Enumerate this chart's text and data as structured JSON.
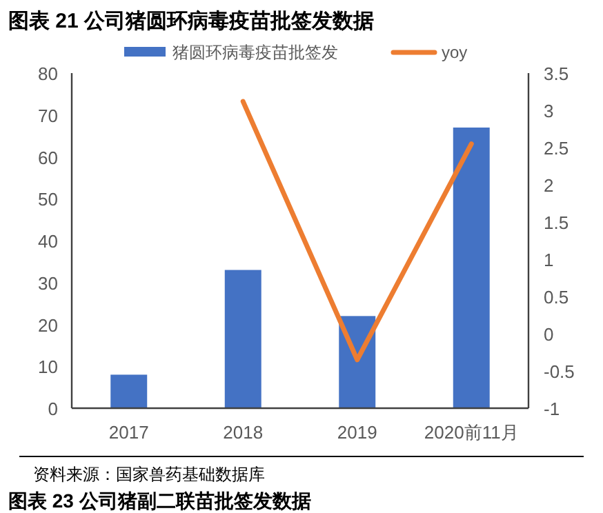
{
  "chart_data": {
    "type": "bar",
    "title": "图表 21 公司猪圆环病毒疫苗批签发数据",
    "categories": [
      "2017",
      "2018",
      "2019",
      "2020前11月"
    ],
    "series": [
      {
        "name": "猪圆环病毒疫苗批签发",
        "color": "#4472c4",
        "values": [
          8,
          33,
          22,
          67
        ]
      },
      {
        "name": "yoy",
        "type": "line",
        "axis": "y2",
        "color": "#ed7d31",
        "values": [
          null,
          3.12,
          -0.35,
          2.55
        ]
      }
    ],
    "ylim": [
      0,
      80
    ],
    "yticks": [
      0,
      10,
      20,
      30,
      40,
      50,
      60,
      70,
      80
    ],
    "y2lim": [
      -1,
      3.5
    ],
    "y2ticks": [
      -1,
      -0.5,
      0,
      0.5,
      1,
      1.5,
      2,
      2.5,
      3,
      3.5
    ],
    "grid": false,
    "legend": "top",
    "marker": "none",
    "line_style": "solid",
    "annotations": [
      "资料来源：国家兽药基础数据库",
      "图表 23 公司猪副二联苗批签发数据"
    ]
  }
}
